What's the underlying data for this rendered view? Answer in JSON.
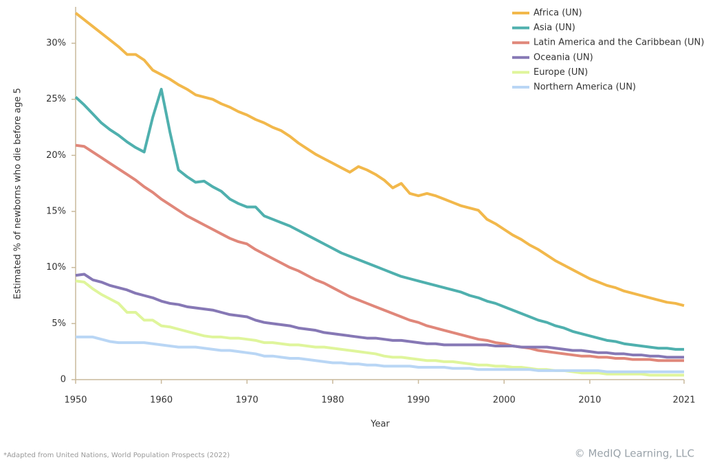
{
  "chart_data": {
    "type": "line",
    "x_label": "Year",
    "y_label": "Estimated % of newborns who die before age 5",
    "note": "*Adapted from United Nations, World Population Prospects (2022)",
    "credit": "© MedIQ Learning, LLC",
    "legend": "top-right",
    "grid": false,
    "xlim": [
      1950,
      2021
    ],
    "xticks": [
      1950,
      1960,
      1970,
      1980,
      1990,
      2000,
      2010,
      2021
    ],
    "ylim": [
      0,
      33
    ],
    "yticks": [
      0,
      {
        "value": 5,
        "label": "5%"
      },
      {
        "value": 10,
        "label": "10%"
      },
      {
        "value": 15,
        "label": "15%"
      },
      {
        "value": 20,
        "label": "20%"
      },
      {
        "value": 25,
        "label": "25%"
      },
      {
        "value": 30,
        "label": "30%"
      }
    ],
    "x": [
      1950,
      1951,
      1952,
      1953,
      1954,
      1955,
      1956,
      1957,
      1958,
      1959,
      1960,
      1961,
      1962,
      1963,
      1964,
      1965,
      1966,
      1967,
      1968,
      1969,
      1970,
      1971,
      1972,
      1973,
      1974,
      1975,
      1976,
      1977,
      1978,
      1979,
      1980,
      1981,
      1982,
      1983,
      1984,
      1985,
      1986,
      1987,
      1988,
      1989,
      1990,
      1991,
      1992,
      1993,
      1994,
      1995,
      1996,
      1997,
      1998,
      1999,
      2000,
      2001,
      2002,
      2003,
      2004,
      2005,
      2006,
      2007,
      2008,
      2009,
      2010,
      2011,
      2012,
      2013,
      2014,
      2015,
      2016,
      2017,
      2018,
      2019,
      2020,
      2021
    ],
    "series": [
      {
        "name": "Africa (UN)",
        "color": "#f2b84b",
        "values": [
          32.7,
          32.1,
          31.5,
          30.9,
          30.3,
          29.7,
          29.0,
          29.0,
          28.5,
          27.6,
          27.2,
          26.8,
          26.3,
          25.9,
          25.4,
          25.2,
          25.0,
          24.6,
          24.3,
          23.9,
          23.6,
          23.2,
          22.9,
          22.5,
          22.2,
          21.7,
          21.1,
          20.6,
          20.1,
          19.7,
          19.3,
          18.9,
          18.5,
          19.0,
          18.7,
          18.3,
          17.8,
          17.1,
          17.5,
          16.6,
          16.4,
          16.6,
          16.4,
          16.1,
          15.8,
          15.5,
          15.3,
          15.1,
          14.3,
          13.9,
          13.4,
          12.9,
          12.5,
          12.0,
          11.6,
          11.1,
          10.6,
          10.2,
          9.8,
          9.4,
          9.0,
          8.7,
          8.4,
          8.2,
          7.9,
          7.7,
          7.5,
          7.3,
          7.1,
          6.9,
          6.8,
          6.6
        ]
      },
      {
        "name": "Asia (UN)",
        "color": "#4fb0ae",
        "values": [
          25.2,
          24.5,
          23.7,
          22.9,
          22.3,
          21.8,
          21.2,
          20.7,
          20.3,
          23.4,
          25.9,
          22.1,
          18.7,
          18.1,
          17.6,
          17.7,
          17.2,
          16.8,
          16.1,
          15.7,
          15.4,
          15.4,
          14.6,
          14.3,
          14.0,
          13.7,
          13.3,
          12.9,
          12.5,
          12.1,
          11.7,
          11.3,
          11.0,
          10.7,
          10.4,
          10.1,
          9.8,
          9.5,
          9.2,
          9.0,
          8.8,
          8.6,
          8.4,
          8.2,
          8.0,
          7.8,
          7.5,
          7.3,
          7.0,
          6.8,
          6.5,
          6.2,
          5.9,
          5.6,
          5.3,
          5.1,
          4.8,
          4.6,
          4.3,
          4.1,
          3.9,
          3.7,
          3.5,
          3.4,
          3.2,
          3.1,
          3.0,
          2.9,
          2.8,
          2.8,
          2.7,
          2.7
        ]
      },
      {
        "name": "Latin America and the Caribbean (UN)",
        "color": "#e0877a",
        "values": [
          20.9,
          20.8,
          20.3,
          19.8,
          19.3,
          18.8,
          18.3,
          17.8,
          17.2,
          16.7,
          16.1,
          15.6,
          15.1,
          14.6,
          14.2,
          13.8,
          13.4,
          13.0,
          12.6,
          12.3,
          12.1,
          11.6,
          11.2,
          10.8,
          10.4,
          10.0,
          9.7,
          9.3,
          8.9,
          8.6,
          8.2,
          7.8,
          7.4,
          7.1,
          6.8,
          6.5,
          6.2,
          5.9,
          5.6,
          5.3,
          5.1,
          4.8,
          4.6,
          4.4,
          4.2,
          4.0,
          3.8,
          3.6,
          3.5,
          3.3,
          3.2,
          3.0,
          2.9,
          2.8,
          2.6,
          2.5,
          2.4,
          2.3,
          2.2,
          2.1,
          2.1,
          2.0,
          2.0,
          1.9,
          1.9,
          1.8,
          1.8,
          1.8,
          1.7,
          1.7,
          1.7,
          1.7
        ]
      },
      {
        "name": "Oceania (UN)",
        "color": "#8678b5",
        "values": [
          9.3,
          9.4,
          8.9,
          8.7,
          8.4,
          8.2,
          8.0,
          7.7,
          7.5,
          7.3,
          7.0,
          6.8,
          6.7,
          6.5,
          6.4,
          6.3,
          6.2,
          6.0,
          5.8,
          5.7,
          5.6,
          5.3,
          5.1,
          5.0,
          4.9,
          4.8,
          4.6,
          4.5,
          4.4,
          4.2,
          4.1,
          4.0,
          3.9,
          3.8,
          3.7,
          3.7,
          3.6,
          3.5,
          3.5,
          3.4,
          3.3,
          3.2,
          3.2,
          3.1,
          3.1,
          3.1,
          3.1,
          3.1,
          3.1,
          3.0,
          3.0,
          3.0,
          2.9,
          2.9,
          2.9,
          2.9,
          2.8,
          2.7,
          2.6,
          2.6,
          2.5,
          2.4,
          2.4,
          2.3,
          2.3,
          2.2,
          2.2,
          2.1,
          2.1,
          2.0,
          2.0,
          2.0
        ]
      },
      {
        "name": "Europe (UN)",
        "color": "#dff59b",
        "values": [
          8.8,
          8.7,
          8.1,
          7.6,
          7.2,
          6.8,
          6.0,
          6.0,
          5.3,
          5.3,
          4.8,
          4.7,
          4.5,
          4.3,
          4.1,
          3.9,
          3.8,
          3.8,
          3.7,
          3.7,
          3.6,
          3.5,
          3.3,
          3.3,
          3.2,
          3.1,
          3.1,
          3.0,
          2.9,
          2.9,
          2.8,
          2.7,
          2.6,
          2.5,
          2.4,
          2.3,
          2.1,
          2.0,
          2.0,
          1.9,
          1.8,
          1.7,
          1.7,
          1.6,
          1.6,
          1.5,
          1.4,
          1.3,
          1.3,
          1.2,
          1.2,
          1.1,
          1.1,
          1.0,
          0.9,
          0.9,
          0.8,
          0.8,
          0.7,
          0.6,
          0.6,
          0.6,
          0.5,
          0.5,
          0.5,
          0.5,
          0.5,
          0.4,
          0.4,
          0.4,
          0.4,
          0.4
        ]
      },
      {
        "name": "Northern America (UN)",
        "color": "#b9d6f5",
        "values": [
          3.8,
          3.8,
          3.8,
          3.6,
          3.4,
          3.3,
          3.3,
          3.3,
          3.3,
          3.2,
          3.1,
          3.0,
          2.9,
          2.9,
          2.9,
          2.8,
          2.7,
          2.6,
          2.6,
          2.5,
          2.4,
          2.3,
          2.1,
          2.1,
          2.0,
          1.9,
          1.9,
          1.8,
          1.7,
          1.6,
          1.5,
          1.5,
          1.4,
          1.4,
          1.3,
          1.3,
          1.2,
          1.2,
          1.2,
          1.2,
          1.1,
          1.1,
          1.1,
          1.1,
          1.0,
          1.0,
          1.0,
          0.9,
          0.9,
          0.9,
          0.9,
          0.9,
          0.9,
          0.9,
          0.8,
          0.8,
          0.8,
          0.8,
          0.8,
          0.8,
          0.8,
          0.8,
          0.7,
          0.7,
          0.7,
          0.7,
          0.7,
          0.7,
          0.7,
          0.7,
          0.7,
          0.7
        ]
      }
    ]
  }
}
